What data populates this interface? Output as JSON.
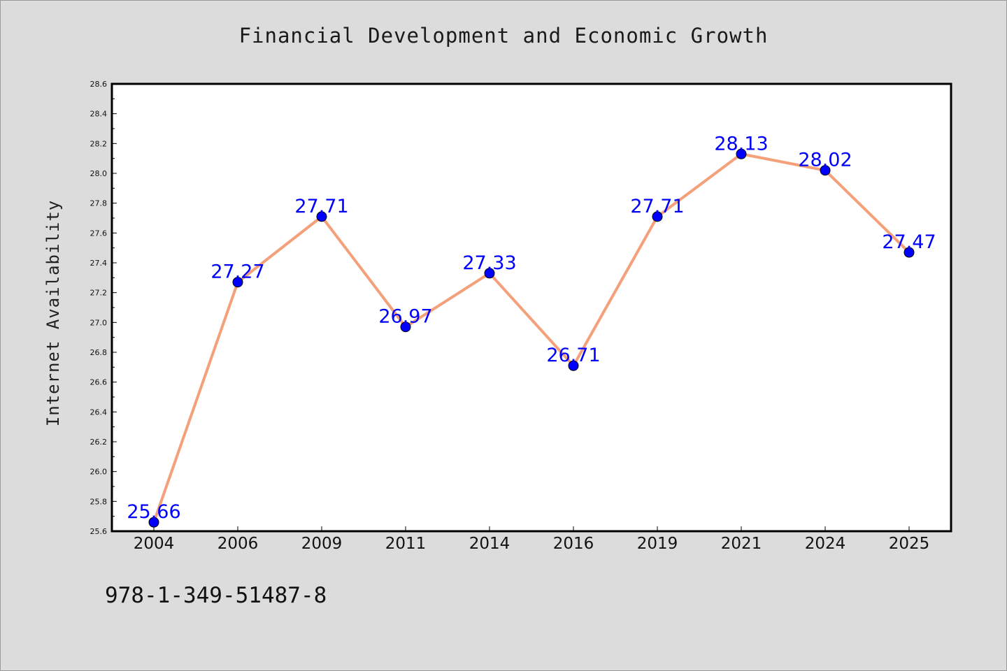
{
  "chart_data": {
    "type": "line",
    "title": "Financial Development and Economic Growth",
    "xlabel": "",
    "ylabel": "Internet Availability",
    "categories": [
      "2004",
      "2006",
      "2009",
      "2011",
      "2014",
      "2016",
      "2019",
      "2021",
      "2024",
      "2025"
    ],
    "series": [
      {
        "values": [
          25.66,
          27.27,
          27.71,
          26.97,
          27.33,
          26.71,
          27.71,
          28.13,
          28.02,
          27.47
        ],
        "labels": [
          "25.66",
          "27.27",
          "27.71",
          "26.97",
          "27.33",
          "26.71",
          "27.71",
          "28.13",
          "28.02",
          "27.47"
        ]
      }
    ],
    "ylim": [
      25.6,
      28.6
    ],
    "yticks": [
      "25.6",
      "25.8",
      "26.0",
      "26.2",
      "26.4",
      "26.6",
      "26.8",
      "27.0",
      "27.2",
      "27.4",
      "27.6",
      "27.8",
      "28.0",
      "28.2",
      "28.4",
      "28.6"
    ],
    "grid": false,
    "legend": "none",
    "colors": {
      "line": "#f4a07a",
      "marker": "#0000ff",
      "label": "#0000ff",
      "background": "#dcdcdc",
      "plot_background": "#ffffff"
    }
  },
  "footer": {
    "isbn": "978-1-349-51487-8"
  }
}
